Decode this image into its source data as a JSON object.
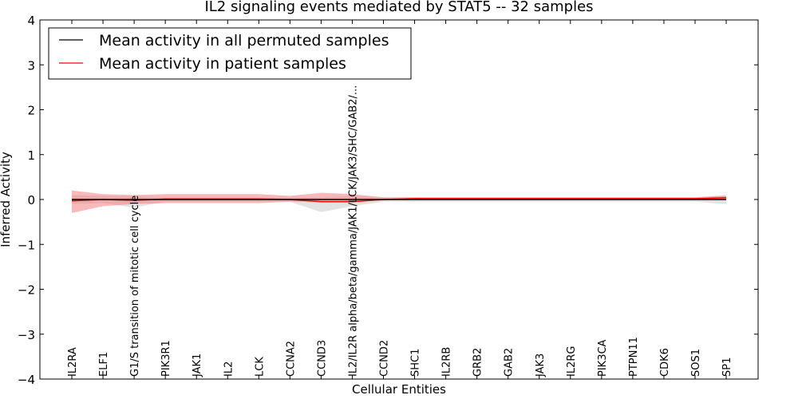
{
  "chart_data": {
    "type": "line",
    "title": "IL2 signaling events mediated by STAT5 -- 32 samples",
    "xlabel": "Cellular Entities",
    "ylabel": "Inferred Activity",
    "ylim": [
      -4,
      4
    ],
    "yticks": [
      4,
      3,
      2,
      1,
      0,
      -1,
      -2,
      -3,
      -4
    ],
    "ytick_labels": [
      "4",
      "3",
      "2",
      "1",
      "0",
      "−1",
      "−2",
      "−3",
      "−4"
    ],
    "grid": false,
    "legend_position": "top-left",
    "categories": [
      "IL2RA",
      "ELF1",
      "G1/S transition of mitotic cell cycle",
      "PIK3R1",
      "JAK1",
      "IL2",
      "LCK",
      "CCNA2",
      "CCND3",
      "IL2/IL2R alpha/beta/gamma/JAK1/LCK/JAK3/SHC/GAB2/...",
      "CCND2",
      "SHC1",
      "IL2RB",
      "GRB2",
      "GAB2",
      "JAK3",
      "IL2RG",
      "PIK3CA",
      "PTPN11",
      "CDK6",
      "SOS1",
      "SP1"
    ],
    "series": [
      {
        "name": "Mean activity in all permuted samples",
        "color": "#000000",
        "values": [
          0.0,
          0.0,
          0.0,
          0.0,
          0.0,
          0.0,
          0.0,
          0.0,
          0.0,
          0.0,
          0.0,
          0.0,
          0.0,
          0.0,
          0.0,
          0.0,
          0.0,
          0.0,
          0.0,
          0.0,
          0.0,
          0.0
        ],
        "band_lower": [
          -0.1,
          -0.08,
          -0.18,
          -0.05,
          -0.05,
          -0.05,
          -0.05,
          -0.05,
          -0.28,
          -0.15,
          -0.05,
          -0.05,
          -0.05,
          -0.05,
          -0.05,
          -0.05,
          -0.05,
          -0.05,
          -0.05,
          -0.05,
          -0.05,
          -0.1
        ],
        "band_upper": [
          0.1,
          0.08,
          0.07,
          0.05,
          0.05,
          0.05,
          0.05,
          0.05,
          0.05,
          0.08,
          0.05,
          0.05,
          0.05,
          0.05,
          0.05,
          0.05,
          0.05,
          0.05,
          0.05,
          0.05,
          0.05,
          0.1
        ],
        "band_color": "#c8c8c8"
      },
      {
        "name": "Mean activity in patient samples",
        "color": "#ff0000",
        "values": [
          -0.03,
          0.0,
          -0.02,
          0.01,
          0.01,
          0.01,
          0.01,
          0.0,
          -0.05,
          -0.05,
          0.0,
          0.02,
          0.02,
          0.02,
          0.02,
          0.02,
          0.02,
          0.02,
          0.02,
          0.02,
          0.02,
          0.04
        ],
        "band_lower": [
          -0.3,
          -0.15,
          -0.1,
          -0.08,
          -0.08,
          -0.08,
          -0.08,
          -0.05,
          -0.05,
          -0.05,
          -0.02,
          0.0,
          0.0,
          0.0,
          0.0,
          0.0,
          0.0,
          0.0,
          0.0,
          0.0,
          0.0,
          0.0
        ],
        "band_upper": [
          0.2,
          0.12,
          0.1,
          0.12,
          0.12,
          0.12,
          0.12,
          0.08,
          0.15,
          0.12,
          0.05,
          0.05,
          0.05,
          0.05,
          0.05,
          0.05,
          0.05,
          0.05,
          0.05,
          0.05,
          0.05,
          0.08
        ],
        "band_color": "#f08080"
      }
    ]
  }
}
